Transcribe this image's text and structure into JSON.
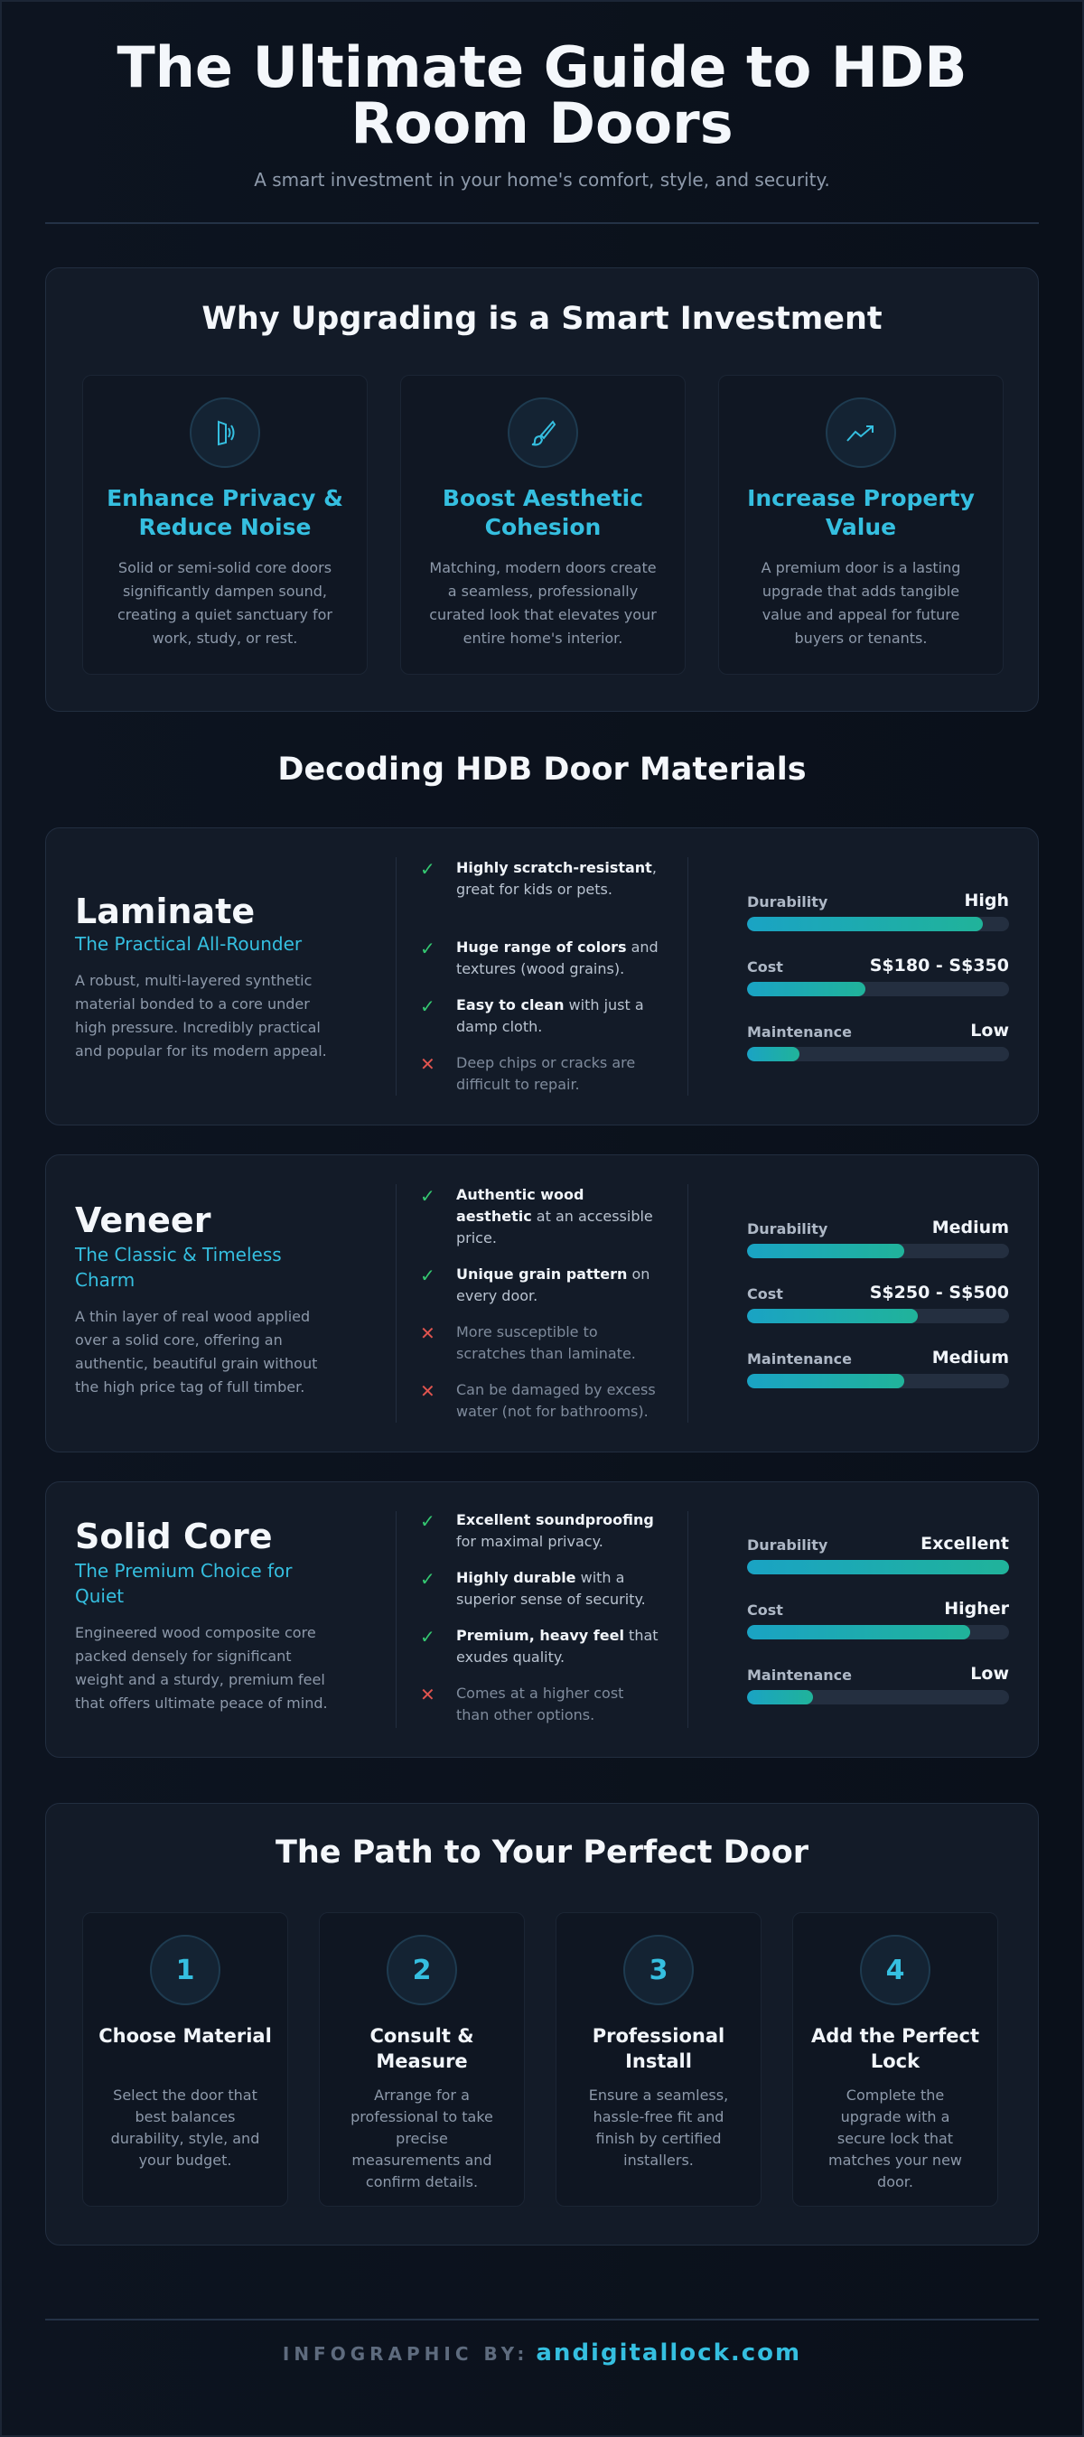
{
  "header": {
    "title": "The Ultimate Guide to HDB Room Doors",
    "subtitle": "A smart investment in your home's comfort, style, and security."
  },
  "why": {
    "title": "Why Upgrading is a Smart Investment",
    "cards": [
      {
        "icon": "door-sound-icon",
        "title": "Enhance Privacy & Reduce Noise",
        "text": "Solid or semi-solid core doors significantly dampen sound, creating a quiet sanctuary for work, study, or rest."
      },
      {
        "icon": "paintbrush-icon",
        "title": "Boost Aesthetic Cohesion",
        "text": "Matching, modern doors create a seamless, professionally curated look that elevates your entire home's interior."
      },
      {
        "icon": "trend-up-icon",
        "title": "Increase Property Value",
        "text": "A premium door is a lasting upgrade that adds tangible value and appeal for future buyers or tenants."
      }
    ]
  },
  "materials": {
    "title": "Decoding HDB Door Materials",
    "items": [
      {
        "name": "Laminate",
        "tagline": "The Practical All-Rounder",
        "description": "A robust, multi-layered synthetic material bonded to a core under high pressure. Incredibly practical and popular for its modern appeal.",
        "points": [
          {
            "type": "pro",
            "bold": "Highly scratch-resistant",
            "rest": ", great for kids or pets."
          },
          {
            "type": "pro",
            "bold": "Huge range of colors",
            "rest": " and textures (wood grains)."
          },
          {
            "type": "pro",
            "bold": "Easy to clean",
            "rest": " with just a damp cloth."
          },
          {
            "type": "con",
            "bold": "",
            "rest": "Deep chips or cracks are difficult to repair."
          }
        ],
        "stats": [
          {
            "label": "Durability",
            "value": "High",
            "level": 0.9
          },
          {
            "label": "Cost",
            "value": "S$180 - S$350",
            "level": 0.45
          },
          {
            "label": "Maintenance",
            "value": "Low",
            "level": 0.2
          }
        ]
      },
      {
        "name": "Veneer",
        "tagline": "The Classic & Timeless Charm",
        "description": "A thin layer of real wood applied over a solid core, offering an authentic, beautiful grain without the high price tag of full timber.",
        "points": [
          {
            "type": "pro",
            "bold": "Authentic wood aesthetic",
            "rest": " at an accessible price."
          },
          {
            "type": "pro",
            "bold": "Unique grain pattern",
            "rest": " on every door."
          },
          {
            "type": "con",
            "bold": "",
            "rest": "More susceptible to scratches than laminate."
          },
          {
            "type": "con",
            "bold": "",
            "rest": "Can be damaged by excess water (not for bathrooms)."
          }
        ],
        "stats": [
          {
            "label": "Durability",
            "value": "Medium",
            "level": 0.6
          },
          {
            "label": "Cost",
            "value": "S$250 - S$500",
            "level": 0.65
          },
          {
            "label": "Maintenance",
            "value": "Medium",
            "level": 0.6
          }
        ]
      },
      {
        "name": "Solid Core",
        "tagline": "The Premium Choice for Quiet",
        "description": "Engineered wood composite core packed densely for significant weight and a sturdy, premium feel that offers ultimate peace of mind.",
        "points": [
          {
            "type": "pro",
            "bold": "Excellent soundproofing",
            "rest": " for maximal privacy."
          },
          {
            "type": "pro",
            "bold": "Highly durable",
            "rest": " with a superior sense of security."
          },
          {
            "type": "pro",
            "bold": "Premium, heavy feel",
            "rest": " that exudes quality."
          },
          {
            "type": "con",
            "bold": "",
            "rest": "Comes at a higher cost than other options."
          }
        ],
        "stats": [
          {
            "label": "Durability",
            "value": "Excellent",
            "level": 1.0
          },
          {
            "label": "Cost",
            "value": "Higher",
            "level": 0.85
          },
          {
            "label": "Maintenance",
            "value": "Low",
            "level": 0.25
          }
        ]
      }
    ]
  },
  "path": {
    "title": "The Path to Your Perfect Door",
    "steps": [
      {
        "number": "1",
        "title": "Choose Material",
        "text": "Select the door that best balances durability, style, and your budget."
      },
      {
        "number": "2",
        "title": "Consult & Measure",
        "text": "Arrange for a professional to take precise measurements and confirm details."
      },
      {
        "number": "3",
        "title": "Professional Install",
        "text": "Ensure a seamless, hassle-free fit and finish by certified installers."
      },
      {
        "number": "4",
        "title": "Add the Perfect Lock",
        "text": "Complete the upgrade with a secure lock that matches your new door."
      }
    ]
  },
  "footer": {
    "by_label": "INFOGRAPHIC BY:",
    "site": "andigitallock.com"
  },
  "colors": {
    "background": "#0b111c",
    "panel": "#131b28",
    "accent": "#35bfe0",
    "pro": "#34c871",
    "con": "#e0544f"
  }
}
